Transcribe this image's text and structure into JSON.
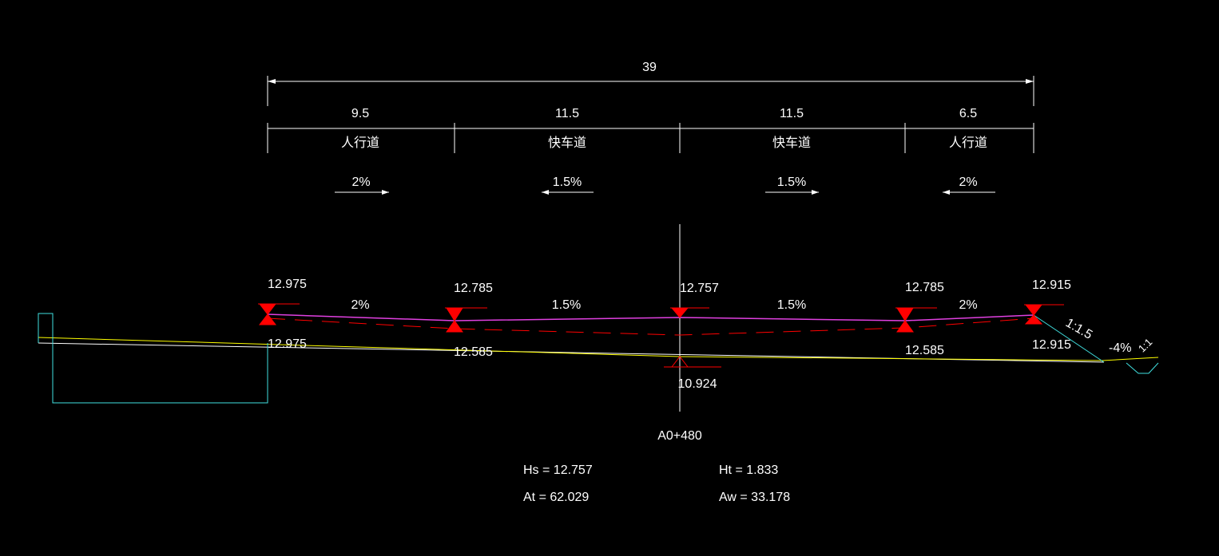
{
  "dimensions": {
    "total": "39",
    "segments": [
      "9.5",
      "11.5",
      "11.5",
      "6.5"
    ],
    "labels": [
      "人行道",
      "快车道",
      "快车道",
      "人行道"
    ]
  },
  "crossfall_top": [
    "2%",
    "1.5%",
    "1.5%",
    "2%"
  ],
  "design_elevations": [
    "12.975",
    "12.785",
    "12.757",
    "12.785",
    "12.915"
  ],
  "crossfall_line": [
    "2%",
    "1.5%",
    "1.5%",
    "2%"
  ],
  "ground_elevations": [
    "12.975",
    "12.585",
    "10.924",
    "12.585",
    "12.915"
  ],
  "side_slope": "1:1.5",
  "ditch_slope": "-4%",
  "ditch_side": "1:1",
  "station": "A0+480",
  "stats": {
    "hs": "Hs = 12.757",
    "ht": "Ht = 1.833",
    "at": "At = 62.029",
    "aw": "Aw = 33.178"
  }
}
